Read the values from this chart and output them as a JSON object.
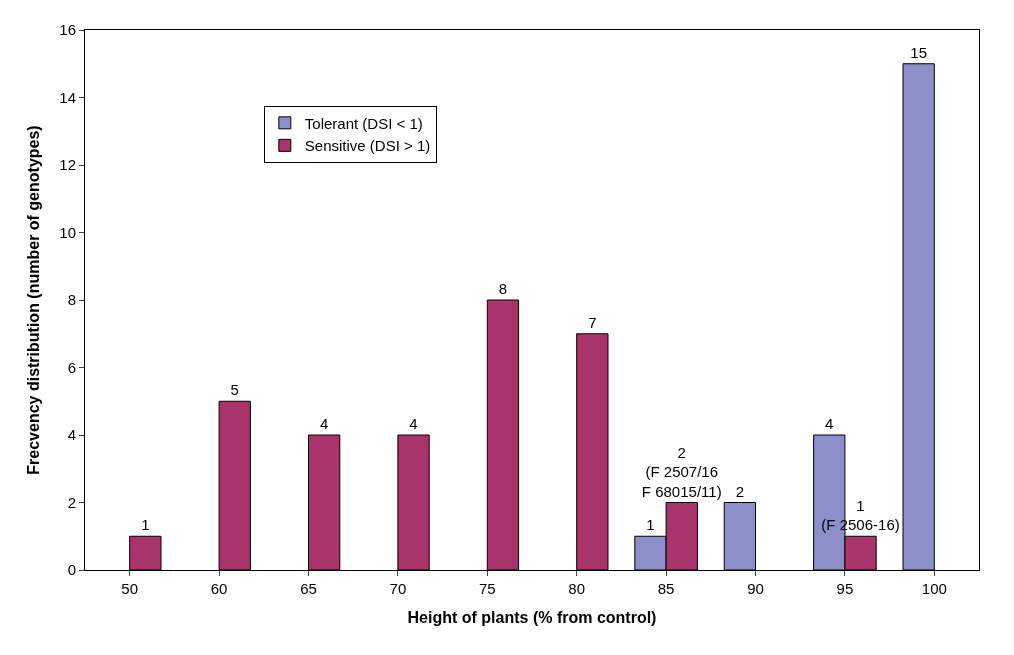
{
  "chart_data": {
    "type": "bar",
    "xlabel": "Height of plants (% from control)",
    "ylabel": "Frecvency distribution (number of genotypes)",
    "categories": [
      "50",
      "60",
      "65",
      "70",
      "75",
      "80",
      "85",
      "90",
      "95",
      "100"
    ],
    "series": [
      {
        "name": "Tolerant (DSI < 1)",
        "color": "#8c8fc9",
        "values": [
          null,
          null,
          null,
          null,
          null,
          null,
          1,
          2,
          4,
          15
        ],
        "value_labels": [
          null,
          null,
          null,
          null,
          null,
          null,
          "1",
          "2",
          "4",
          "15"
        ]
      },
      {
        "name": "Sensitive (DSI > 1)",
        "color": "#a8346a",
        "values": [
          1,
          5,
          4,
          4,
          8,
          7,
          2,
          null,
          1,
          null
        ],
        "value_labels": [
          "1",
          "5",
          "4",
          "4",
          "8",
          "7",
          "2\n(F 2507/16\nF 68015/11)",
          null,
          "1\n(F 2506-16)",
          null
        ]
      }
    ],
    "ylim": [
      0,
      16
    ],
    "yticks": [
      0,
      2,
      4,
      6,
      8,
      10,
      12,
      14,
      16
    ],
    "grid": false,
    "legend": "top left"
  }
}
